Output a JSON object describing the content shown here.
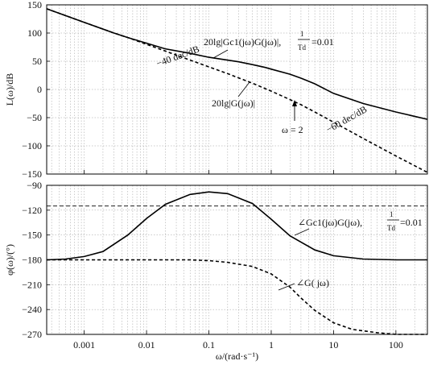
{
  "chart_data": [
    {
      "type": "line",
      "panel": "magnitude",
      "ylabel": "L(ω)/dB",
      "xscale": "log",
      "xlim": [
        0.00025,
        320
      ],
      "ylim": [
        -150,
        150
      ],
      "yticks": [
        150,
        100,
        50,
        0,
        -50,
        -100,
        -150
      ],
      "grid": true,
      "series": [
        {
          "name": "20lg|Gc1(jω)G(jω)|, 1/Td = 0.01",
          "style": "solid",
          "x": [
            0.00025,
            0.001,
            0.003,
            0.005,
            0.01,
            0.02,
            0.05,
            0.1,
            0.3,
            0.5,
            0.8,
            1,
            2,
            3,
            5,
            10,
            30,
            100,
            320
          ],
          "y": [
            143,
            119,
            100,
            92,
            82,
            72,
            64,
            57,
            49,
            44,
            39,
            36,
            27,
            20,
            10,
            -7,
            -25,
            -40,
            -53
          ]
        },
        {
          "name": "20lg|G(jω)|",
          "style": "dashed",
          "x": [
            0.00025,
            0.001,
            0.003,
            0.005,
            0.01,
            0.02,
            0.05,
            0.1,
            0.2,
            0.5,
            1,
            2,
            3,
            5,
            10,
            30,
            100,
            320
          ],
          "y": [
            143,
            119,
            100,
            92,
            80,
            68,
            52,
            40,
            28,
            11,
            -3,
            -18,
            -27,
            -40,
            -58,
            -87,
            -118,
            -147
          ]
        }
      ],
      "annotations": [
        {
          "text": "−40 dec/dB"
        },
        {
          "text": "−60 dec/dB"
        },
        {
          "text": "ω = 2"
        }
      ]
    },
    {
      "type": "line",
      "panel": "phase",
      "xlabel": "ω/(rad·s⁻¹)",
      "ylabel": "φ(ω)/(°)",
      "xscale": "log",
      "xlim": [
        0.00025,
        320
      ],
      "ylim": [
        -270,
        -90
      ],
      "yticks": [
        -90,
        -120,
        -150,
        -180,
        -210,
        -240,
        -270
      ],
      "xticks": [
        0.001,
        0.01,
        0.1,
        1,
        10,
        100
      ],
      "xticklabels": [
        "0.001",
        "0.01",
        "0.1",
        "1",
        "10",
        "100"
      ],
      "grid": true,
      "reference_line": {
        "y": -115,
        "style": "dashed"
      },
      "series": [
        {
          "name": "∠Gc1(jω)G(jω), 1/Td = 0.01",
          "style": "solid",
          "x": [
            0.00025,
            0.0005,
            0.001,
            0.002,
            0.005,
            0.01,
            0.02,
            0.05,
            0.1,
            0.2,
            0.5,
            1,
            2,
            5,
            10,
            30,
            100,
            320
          ],
          "y": [
            -180,
            -179,
            -176,
            -170,
            -150,
            -130,
            -113,
            -101,
            -98,
            -100,
            -112,
            -131,
            -151,
            -168,
            -175,
            -179,
            -180,
            -180
          ]
        },
        {
          "name": "∠G(jω)",
          "style": "dashed",
          "x": [
            0.00025,
            0.001,
            0.01,
            0.05,
            0.1,
            0.2,
            0.5,
            1,
            2,
            3,
            5,
            10,
            20,
            50,
            100,
            320
          ],
          "y": [
            -180,
            -180,
            -180,
            -180,
            -181,
            -183,
            -188,
            -197,
            -213,
            -226,
            -241,
            -256,
            -264,
            -268,
            -270,
            -270
          ]
        }
      ],
      "annotations": [
        {
          "text": "∠Gc1(jω)G(jω), 1/Td = 0.01"
        },
        {
          "text": "∠G(jω)"
        }
      ]
    }
  ],
  "labels": {
    "mag_ylabel": "L(ω)/dB",
    "phase_ylabel": "φ(ω)/(°)",
    "xlabel": "ω/(rad·s⁻¹)",
    "mag_series_a": "20lg|Gc1(jω)G(jω)|,",
    "mag_series_a_frac_top": "1",
    "mag_series_a_frac_bot": "Td",
    "mag_series_a_eq": "=0.01",
    "mag_slope_1": "−40 dec/dB",
    "mag_slope_2": "−60 dec/dB",
    "mag_series_b": "20lg|G(jω)|",
    "omega_marker": "ω = 2",
    "phase_series_a": "∠Gc1(jω)G(jω),",
    "phase_series_a_frac_top": "1",
    "phase_series_a_frac_bot": "Td",
    "phase_series_a_eq": "=0.01",
    "phase_series_b": "∠G( jω)"
  }
}
